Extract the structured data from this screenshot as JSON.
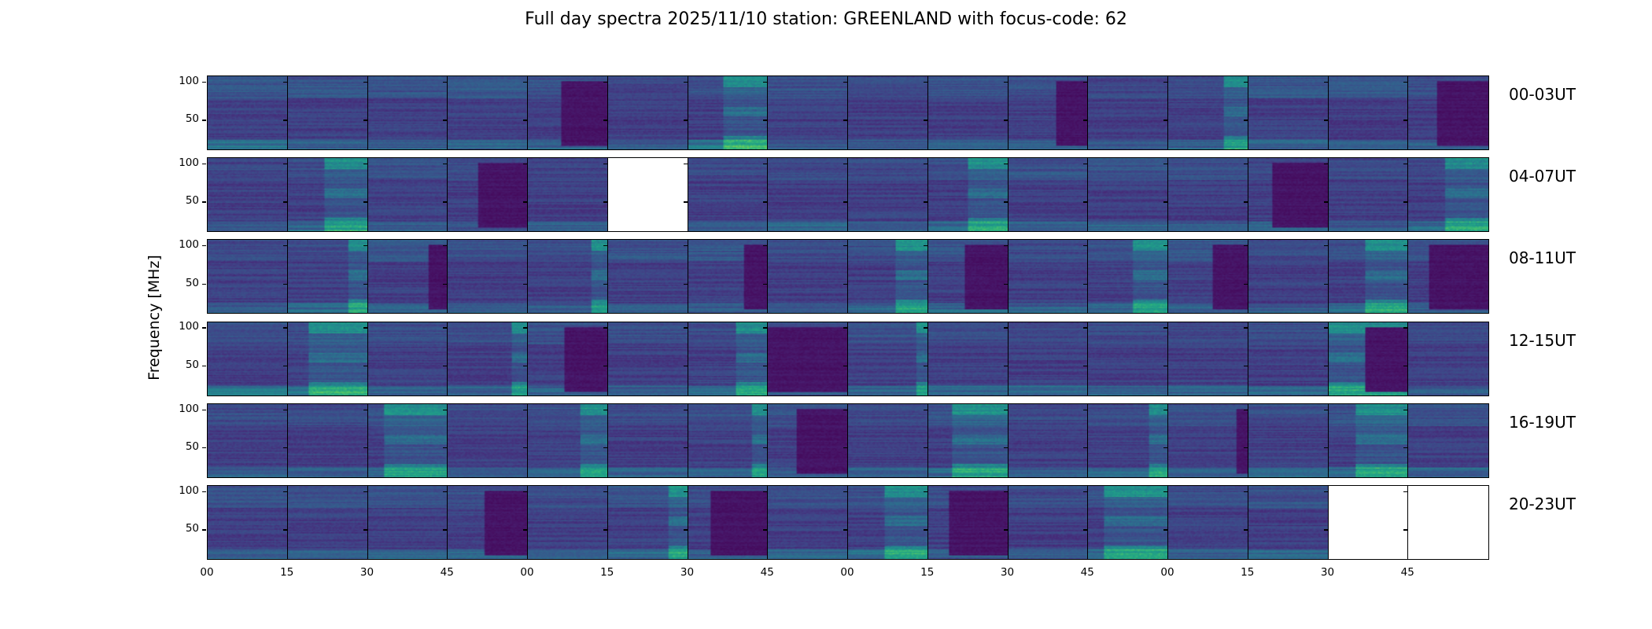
{
  "chart_data": {
    "type": "heatmap",
    "title": "Full day spectra 2025/11/10 station: GREENLAND with focus-code: 62",
    "ylabel": "Frequency [MHz]",
    "xlabel": "",
    "colormap": "viridis",
    "ylim": [
      10,
      108
    ],
    "yticks": [
      "100",
      "50"
    ],
    "ytick_values": [
      100,
      50
    ],
    "xticks": [
      "00",
      "15",
      "30",
      "45",
      "00",
      "15",
      "30",
      "45",
      "00",
      "15",
      "30",
      "45",
      "00",
      "15",
      "30",
      "45"
    ],
    "panels_per_row": 16,
    "panel_duration_min": 15,
    "rows": [
      {
        "label": "00-03UT",
        "panels": [
          {
            "missing": false,
            "bright_low": 0.7,
            "band_hi": 0.4,
            "dark_from": null,
            "burst_from": null
          },
          {
            "missing": false,
            "bright_low": 0.4,
            "band_hi": 0.35,
            "dark_from": null,
            "burst_from": null
          },
          {
            "missing": false,
            "bright_low": 0.4,
            "band_hi": 0.35,
            "dark_from": null,
            "burst_from": null
          },
          {
            "missing": false,
            "bright_low": 0.5,
            "band_hi": 0.45,
            "dark_from": null,
            "burst_from": null
          },
          {
            "missing": false,
            "bright_low": 0.4,
            "band_hi": 0.3,
            "dark_from": 0.42,
            "burst_from": null
          },
          {
            "missing": false,
            "bright_low": 0.4,
            "band_hi": 0.15,
            "dark_from": null,
            "burst_from": null
          },
          {
            "missing": false,
            "bright_low": 0.7,
            "band_hi": 0.3,
            "dark_from": null,
            "burst_from": 0.43
          },
          {
            "missing": false,
            "bright_low": 0.35,
            "band_hi": 0.3,
            "dark_from": null,
            "burst_from": null
          },
          {
            "missing": false,
            "bright_low": 0.3,
            "band_hi": 0.2,
            "dark_from": null,
            "burst_from": null
          },
          {
            "missing": false,
            "bright_low": 0.4,
            "band_hi": 0.35,
            "dark_from": null,
            "burst_from": null
          },
          {
            "missing": false,
            "bright_low": 0.4,
            "band_hi": 0.3,
            "dark_from": 0.6,
            "burst_from": null
          },
          {
            "missing": false,
            "bright_low": 0.3,
            "band_hi": 0.15,
            "dark_from": null,
            "burst_from": null
          },
          {
            "missing": false,
            "bright_low": 0.5,
            "band_hi": 0.2,
            "dark_from": null,
            "burst_from": 0.7
          },
          {
            "missing": false,
            "bright_low": 0.4,
            "band_hi": 0.4,
            "dark_from": null,
            "burst_from": null
          },
          {
            "missing": false,
            "bright_low": 0.4,
            "band_hi": 0.45,
            "dark_from": null,
            "burst_from": null
          },
          {
            "missing": false,
            "bright_low": 0.35,
            "band_hi": 0.3,
            "dark_from": 0.35,
            "burst_from": null
          }
        ]
      },
      {
        "label": "04-07UT",
        "panels": [
          {
            "missing": false,
            "bright_low": 0.35,
            "band_hi": 0.1,
            "dark_from": null,
            "burst_from": null
          },
          {
            "missing": false,
            "bright_low": 0.6,
            "band_hi": 0.2,
            "dark_from": null,
            "burst_from": 0.45
          },
          {
            "missing": false,
            "bright_low": 0.4,
            "band_hi": 0.35,
            "dark_from": null,
            "burst_from": null
          },
          {
            "missing": false,
            "bright_low": 0.3,
            "band_hi": 0.2,
            "dark_from": 0.38,
            "burst_from": null
          },
          {
            "missing": false,
            "bright_low": 0.4,
            "band_hi": 0.1,
            "dark_from": null,
            "burst_from": null
          },
          {
            "missing": true
          },
          {
            "missing": false,
            "bright_low": 0.35,
            "band_hi": 0.15,
            "dark_from": null,
            "burst_from": null
          },
          {
            "missing": false,
            "bright_low": 0.45,
            "band_hi": 0.2,
            "dark_from": null,
            "burst_from": null
          },
          {
            "missing": false,
            "bright_low": 0.35,
            "band_hi": 0.2,
            "dark_from": null,
            "burst_from": null
          },
          {
            "missing": false,
            "bright_low": 0.6,
            "band_hi": 0.25,
            "dark_from": null,
            "burst_from": 0.5
          },
          {
            "missing": false,
            "bright_low": 0.35,
            "band_hi": 0.35,
            "dark_from": null,
            "burst_from": null
          },
          {
            "missing": false,
            "bright_low": 0.5,
            "band_hi": 0.35,
            "dark_from": null,
            "burst_from": null
          },
          {
            "missing": false,
            "bright_low": 0.35,
            "band_hi": 0.25,
            "dark_from": null,
            "burst_from": null
          },
          {
            "missing": false,
            "bright_low": 0.4,
            "band_hi": 0.25,
            "dark_from": 0.3,
            "burst_from": null
          },
          {
            "missing": false,
            "bright_low": 0.3,
            "band_hi": 0.2,
            "dark_from": null,
            "burst_from": null
          },
          {
            "missing": false,
            "bright_low": 0.55,
            "band_hi": 0.2,
            "dark_from": null,
            "burst_from": 0.45
          }
        ]
      },
      {
        "label": "08-11UT",
        "panels": [
          {
            "missing": false,
            "bright_low": 0.35,
            "band_hi": 0.15,
            "dark_from": null,
            "burst_from": null
          },
          {
            "missing": false,
            "bright_low": 0.5,
            "band_hi": 0.2,
            "dark_from": null,
            "burst_from": 0.75
          },
          {
            "missing": false,
            "bright_low": 0.4,
            "band_hi": 0.4,
            "dark_from": 0.75,
            "burst_from": null
          },
          {
            "missing": false,
            "bright_low": 0.35,
            "band_hi": 0.3,
            "dark_from": null,
            "burst_from": null
          },
          {
            "missing": false,
            "bright_low": 0.35,
            "band_hi": 0.25,
            "dark_from": null,
            "burst_from": 0.8
          },
          {
            "missing": false,
            "bright_low": 0.35,
            "band_hi": 0.35,
            "dark_from": null,
            "burst_from": null
          },
          {
            "missing": false,
            "bright_low": 0.35,
            "band_hi": 0.4,
            "dark_from": 0.7,
            "burst_from": null
          },
          {
            "missing": false,
            "bright_low": 0.35,
            "band_hi": 0.2,
            "dark_from": null,
            "burst_from": null
          },
          {
            "missing": false,
            "bright_low": 0.45,
            "band_hi": 0.3,
            "dark_from": null,
            "burst_from": 0.6
          },
          {
            "missing": false,
            "bright_low": 0.55,
            "band_hi": 0.35,
            "dark_from": 0.45,
            "burst_from": null
          },
          {
            "missing": false,
            "bright_low": 0.35,
            "band_hi": 0.25,
            "dark_from": null,
            "burst_from": null
          },
          {
            "missing": false,
            "bright_low": 0.5,
            "band_hi": 0.3,
            "dark_from": null,
            "burst_from": 0.55
          },
          {
            "missing": false,
            "bright_low": 0.4,
            "band_hi": 0.35,
            "dark_from": 0.55,
            "burst_from": null
          },
          {
            "missing": false,
            "bright_low": 0.35,
            "band_hi": 0.2,
            "dark_from": null,
            "burst_from": null
          },
          {
            "missing": false,
            "bright_low": 0.55,
            "band_hi": 0.3,
            "dark_from": null,
            "burst_from": 0.45
          },
          {
            "missing": false,
            "bright_low": 0.35,
            "band_hi": 0.3,
            "dark_from": 0.25,
            "burst_from": null
          }
        ]
      },
      {
        "label": "12-15UT",
        "panels": [
          {
            "missing": false,
            "bright_low": 0.8,
            "band_hi": 0.25,
            "dark_from": null,
            "burst_from": null
          },
          {
            "missing": false,
            "bright_low": 0.65,
            "band_hi": 0.25,
            "dark_from": null,
            "burst_from": 0.25
          },
          {
            "missing": false,
            "bright_low": 0.4,
            "band_hi": 0.25,
            "dark_from": null,
            "burst_from": null
          },
          {
            "missing": false,
            "bright_low": 0.45,
            "band_hi": 0.25,
            "dark_from": null,
            "burst_from": 0.8
          },
          {
            "missing": false,
            "bright_low": 0.45,
            "band_hi": 0.3,
            "dark_from": 0.45,
            "burst_from": null
          },
          {
            "missing": false,
            "bright_low": 0.4,
            "band_hi": 0.25,
            "dark_from": null,
            "burst_from": null
          },
          {
            "missing": false,
            "bright_low": 0.55,
            "band_hi": 0.25,
            "dark_from": null,
            "burst_from": 0.6
          },
          {
            "missing": false,
            "bright_low": 0.35,
            "band_hi": 0.2,
            "dark_from": 0.0,
            "burst_from": null
          },
          {
            "missing": false,
            "bright_low": 0.45,
            "band_hi": 0.3,
            "dark_from": null,
            "burst_from": 0.85
          },
          {
            "missing": false,
            "bright_low": 0.55,
            "band_hi": 0.2,
            "dark_from": null,
            "burst_from": null
          },
          {
            "missing": false,
            "bright_low": 0.5,
            "band_hi": 0.2,
            "dark_from": null,
            "burst_from": null
          },
          {
            "missing": false,
            "bright_low": 0.5,
            "band_hi": 0.2,
            "dark_from": null,
            "burst_from": null
          },
          {
            "missing": false,
            "bright_low": 0.45,
            "band_hi": 0.2,
            "dark_from": null,
            "burst_from": null
          },
          {
            "missing": false,
            "bright_low": 0.45,
            "band_hi": 0.2,
            "dark_from": null,
            "burst_from": null
          },
          {
            "missing": false,
            "bright_low": 0.55,
            "band_hi": 0.25,
            "dark_from": 0.45,
            "burst_from": 0.0
          },
          {
            "missing": false,
            "bright_low": 0.4,
            "band_hi": 0.2,
            "dark_from": null,
            "burst_from": null
          }
        ]
      },
      {
        "label": "16-19UT",
        "panels": [
          {
            "missing": false,
            "bright_low": 0.35,
            "band_hi": 0.2,
            "dark_from": null,
            "burst_from": null
          },
          {
            "missing": false,
            "bright_low": 0.35,
            "band_hi": 0.2,
            "dark_from": null,
            "burst_from": null
          },
          {
            "missing": false,
            "bright_low": 0.5,
            "band_hi": 0.3,
            "dark_from": null,
            "burst_from": 0.2
          },
          {
            "missing": false,
            "bright_low": 0.35,
            "band_hi": 0.2,
            "dark_from": null,
            "burst_from": null
          },
          {
            "missing": false,
            "bright_low": 0.45,
            "band_hi": 0.25,
            "dark_from": null,
            "burst_from": 0.65
          },
          {
            "missing": false,
            "bright_low": 0.4,
            "band_hi": 0.2,
            "dark_from": null,
            "burst_from": null
          },
          {
            "missing": false,
            "bright_low": 0.4,
            "band_hi": 0.25,
            "dark_from": null,
            "burst_from": 0.8
          },
          {
            "missing": false,
            "bright_low": 0.4,
            "band_hi": 0.3,
            "dark_from": 0.35,
            "burst_from": null
          },
          {
            "missing": false,
            "bright_low": 0.4,
            "band_hi": 0.2,
            "dark_from": null,
            "burst_from": null
          },
          {
            "missing": false,
            "bright_low": 0.55,
            "band_hi": 0.3,
            "dark_from": null,
            "burst_from": 0.3
          },
          {
            "missing": false,
            "bright_low": 0.45,
            "band_hi": 0.2,
            "dark_from": null,
            "burst_from": null
          },
          {
            "missing": false,
            "bright_low": 0.6,
            "band_hi": 0.25,
            "dark_from": null,
            "burst_from": 0.75
          },
          {
            "missing": false,
            "bright_low": 0.35,
            "band_hi": 0.3,
            "dark_from": 0.85,
            "burst_from": null
          },
          {
            "missing": false,
            "bright_low": 0.5,
            "band_hi": 0.2,
            "dark_from": null,
            "burst_from": null
          },
          {
            "missing": false,
            "bright_low": 0.5,
            "band_hi": 0.3,
            "dark_from": null,
            "burst_from": 0.33
          },
          {
            "missing": false,
            "bright_low": 0.45,
            "band_hi": 0.35,
            "dark_from": null,
            "burst_from": null
          }
        ]
      },
      {
        "label": "20-23UT",
        "panels": [
          {
            "missing": false,
            "bright_low": 0.45,
            "band_hi": 0.35,
            "dark_from": null,
            "burst_from": null
          },
          {
            "missing": false,
            "bright_low": 0.4,
            "band_hi": 0.3,
            "dark_from": null,
            "burst_from": null
          },
          {
            "missing": false,
            "bright_low": 0.45,
            "band_hi": 0.35,
            "dark_from": null,
            "burst_from": null
          },
          {
            "missing": false,
            "bright_low": 0.45,
            "band_hi": 0.3,
            "dark_from": 0.45,
            "burst_from": null
          },
          {
            "missing": false,
            "bright_low": 0.35,
            "band_hi": 0.2,
            "dark_from": null,
            "burst_from": null
          },
          {
            "missing": false,
            "bright_low": 0.5,
            "band_hi": 0.3,
            "dark_from": null,
            "burst_from": 0.75
          },
          {
            "missing": false,
            "bright_low": 0.4,
            "band_hi": 0.3,
            "dark_from": 0.28,
            "burst_from": null
          },
          {
            "missing": false,
            "bright_low": 0.45,
            "band_hi": 0.25,
            "dark_from": null,
            "burst_from": null
          },
          {
            "missing": false,
            "bright_low": 0.65,
            "band_hi": 0.3,
            "dark_from": null,
            "burst_from": 0.45
          },
          {
            "missing": false,
            "bright_low": 0.4,
            "band_hi": 0.3,
            "dark_from": 0.25,
            "burst_from": null
          },
          {
            "missing": false,
            "bright_low": 0.35,
            "band_hi": 0.2,
            "dark_from": null,
            "burst_from": null
          },
          {
            "missing": false,
            "bright_low": 0.6,
            "band_hi": 0.3,
            "dark_from": null,
            "burst_from": 0.2
          },
          {
            "missing": false,
            "bright_low": 0.4,
            "band_hi": 0.25,
            "dark_from": null,
            "burst_from": null
          },
          {
            "missing": false,
            "bright_low": 0.45,
            "band_hi": 0.3,
            "dark_from": null,
            "burst_from": null
          },
          {
            "missing": true
          },
          {
            "missing": true
          }
        ]
      }
    ]
  }
}
